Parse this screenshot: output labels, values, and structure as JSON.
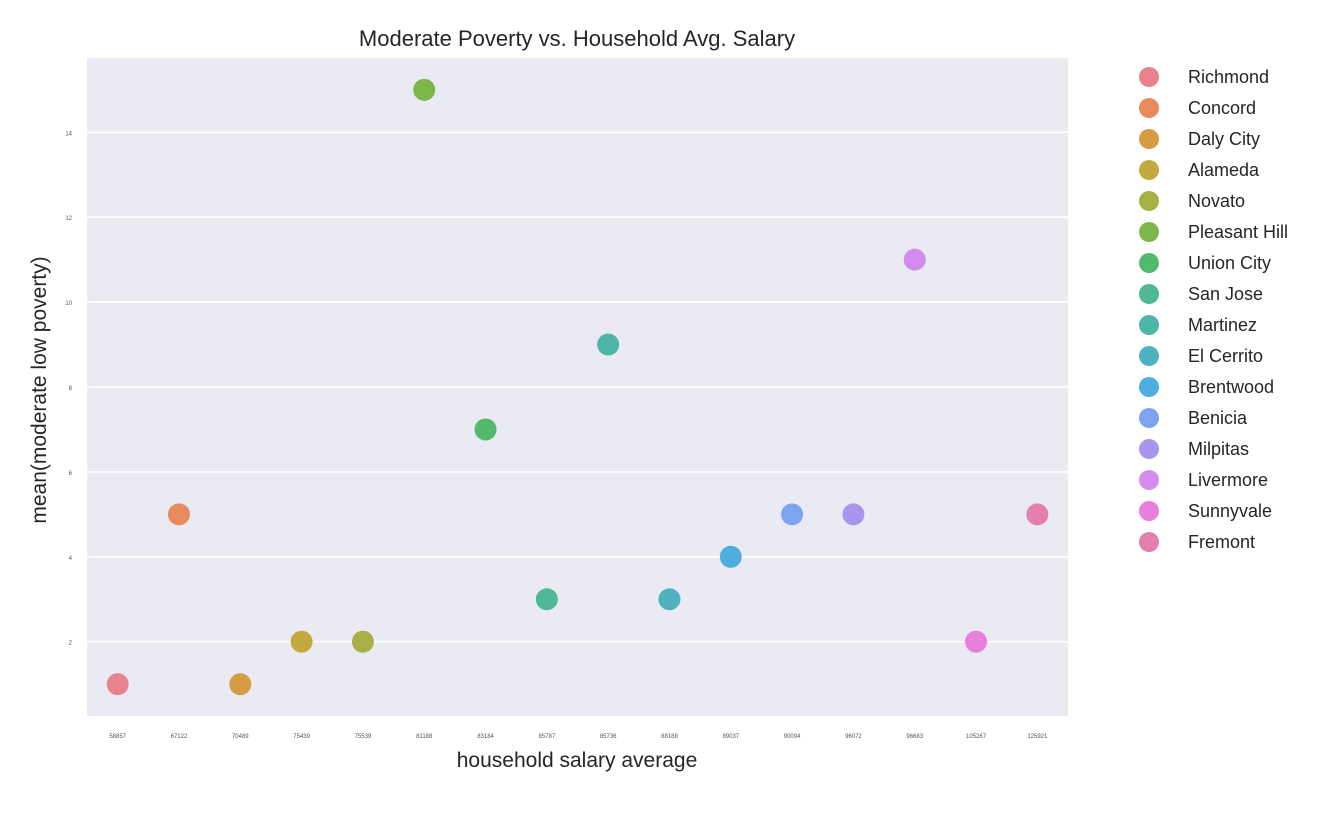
{
  "chart_data": {
    "type": "scatter",
    "title": "Moderate Poverty vs. Household Avg. Salary",
    "xlabel": "household salary average",
    "ylabel": "mean(moderate low poverty)",
    "x_categories": [
      "58857",
      "67122",
      "70489",
      "75439",
      "75539",
      "81188",
      "83184",
      "85787",
      "85736",
      "88188",
      "89037",
      "90094",
      "96072",
      "96683",
      "105267",
      "125921"
    ],
    "y_ticks": [
      2,
      4,
      6,
      8,
      10,
      12,
      14
    ],
    "ylim": [
      0.25,
      15.75
    ],
    "grid": true,
    "legend_position": "right",
    "series": [
      {
        "name": "Richmond",
        "x": "58857",
        "y": 1,
        "color": "#e8838d"
      },
      {
        "name": "Concord",
        "x": "67122",
        "y": 5,
        "color": "#e88a5c"
      },
      {
        "name": "Daly City",
        "x": "70489",
        "y": 1,
        "color": "#d59c45"
      },
      {
        "name": "Alameda",
        "x": "75439",
        "y": 2,
        "color": "#c2aa3f"
      },
      {
        "name": "Novato",
        "x": "75539",
        "y": 2,
        "color": "#a7b045"
      },
      {
        "name": "Pleasant Hill",
        "x": "81188",
        "y": 15,
        "color": "#7db64a"
      },
      {
        "name": "Union City",
        "x": "83184",
        "y": 7,
        "color": "#52ba6a"
      },
      {
        "name": "San Jose",
        "x": "85787",
        "y": 3,
        "color": "#4fb896"
      },
      {
        "name": "Martinez",
        "x": "85736",
        "y": 9,
        "color": "#4eb6a8"
      },
      {
        "name": "El Cerrito",
        "x": "88188",
        "y": 3,
        "color": "#50b2be"
      },
      {
        "name": "Brentwood",
        "x": "89037",
        "y": 4,
        "color": "#4eaedf"
      },
      {
        "name": "Benicia",
        "x": "90094",
        "y": 5,
        "color": "#7da4ef"
      },
      {
        "name": "Milpitas",
        "x": "96072",
        "y": 5,
        "color": "#a896ec"
      },
      {
        "name": "Livermore",
        "x": "96683",
        "y": 11,
        "color": "#d18cee"
      },
      {
        "name": "Sunnyvale",
        "x": "105267",
        "y": 2,
        "color": "#e77fdc"
      },
      {
        "name": "Fremont",
        "x": "125921",
        "y": 5,
        "color": "#e57fae"
      }
    ]
  }
}
